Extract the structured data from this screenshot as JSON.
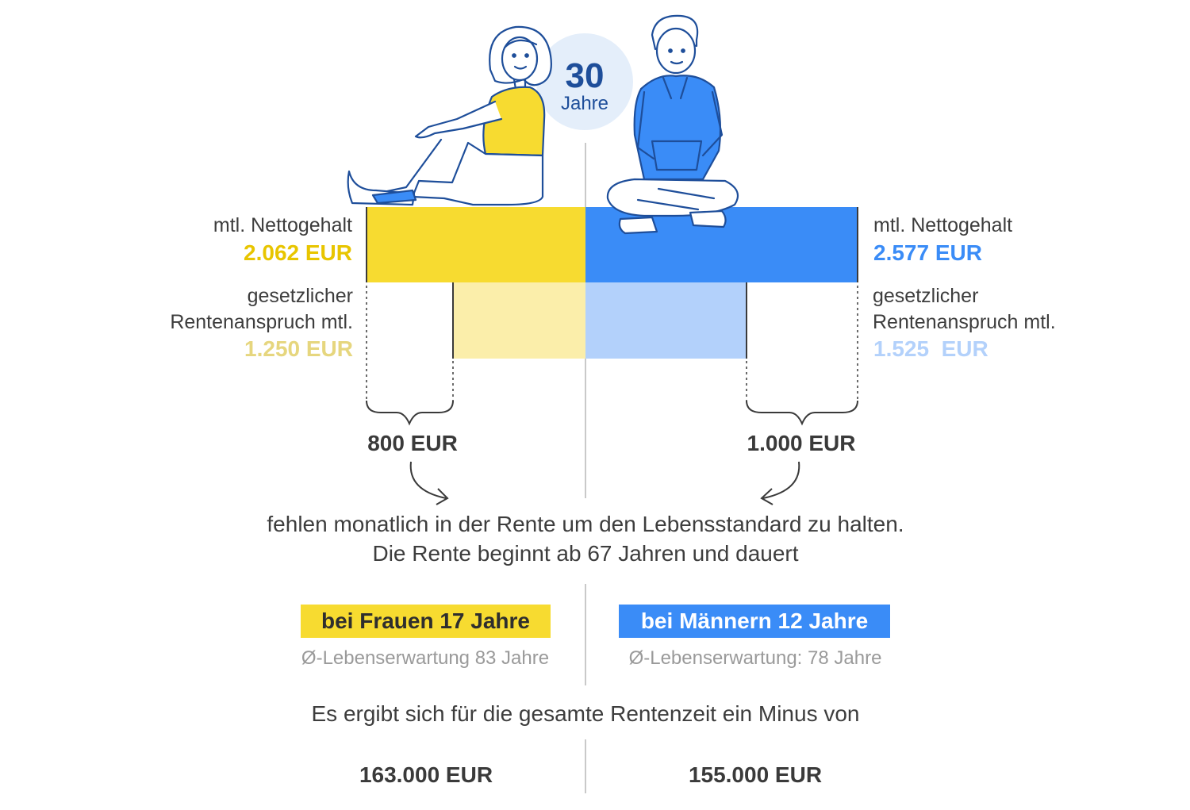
{
  "age": {
    "number": "30",
    "unit": "Jahre"
  },
  "colors": {
    "yellow": "#f7db30",
    "yellow_light": "#fbeeaa",
    "blue": "#3a8cf7",
    "blue_light": "#b3d1fb",
    "navy": "#1e4e9a"
  },
  "woman": {
    "salary_label": "mtl. Nettogehalt",
    "salary_value": "2.062 EUR",
    "pension_label_1": "gesetzlicher",
    "pension_label_2": "Rentenanspruch mtl.",
    "pension_value": "1.250 EUR",
    "gap": "800 EUR",
    "duration": "bei Frauen 17 Jahre",
    "life_expectancy": "Ø-Lebenserwartung 83 Jahre",
    "total_minus": "163.000 EUR"
  },
  "man": {
    "salary_label": "mtl. Nettogehalt",
    "salary_value": "2.577 EUR",
    "pension_label_1": "gesetzlicher",
    "pension_label_2": "Rentenanspruch mtl.",
    "pension_value": "1.525  EUR",
    "gap": "1.000 EUR",
    "duration": "bei Männern 12 Jahre",
    "life_expectancy": "Ø-Lebenserwartung: 78 Jahre",
    "total_minus": "155.000 EUR"
  },
  "text": {
    "missing_line_1": "fehlen monatlich in der Rente um den Lebensstandard zu halten.",
    "missing_line_2": "Die Rente beginnt ab 67 Jahren und dauert",
    "total_intro": "Es ergibt sich für die gesamte Rentenzeit ein Minus von"
  },
  "chart_data": {
    "type": "bar",
    "categories": [
      "Frauen",
      "Männer"
    ],
    "series": [
      {
        "name": "mtl. Nettogehalt",
        "values": [
          2062,
          2577
        ]
      },
      {
        "name": "gesetzlicher Rentenanspruch mtl.",
        "values": [
          1250,
          1525
        ]
      }
    ],
    "gap": [
      800,
      1000
    ],
    "duration_years": [
      17,
      12
    ],
    "life_expectancy": [
      83,
      78
    ],
    "total_minus": [
      163000,
      155000
    ]
  }
}
